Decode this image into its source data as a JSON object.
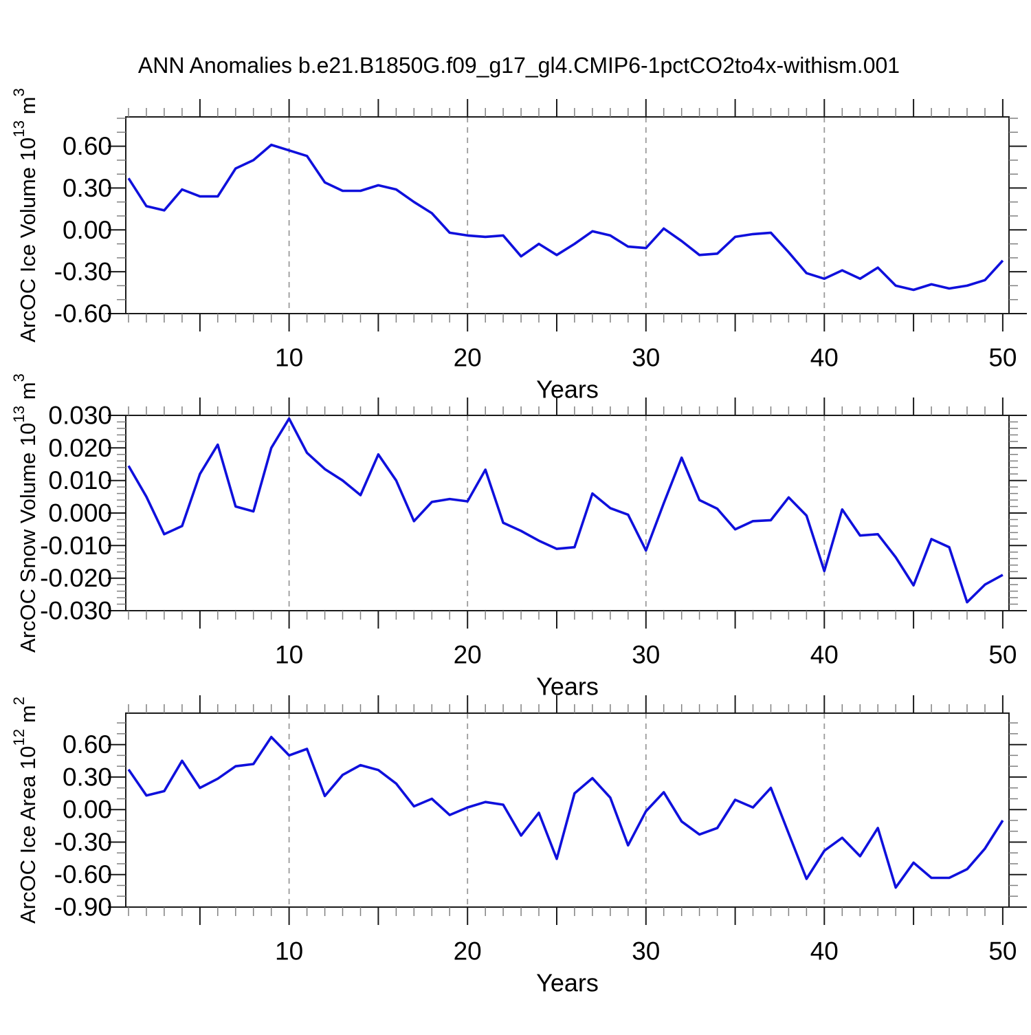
{
  "title": "ANN Anomalies b.e21.B1850G.f09_g17_gl4.CMIP6-1pctCO2to4x-withism.001",
  "colors": {
    "line": "#0f10dc",
    "grid": "#9a9a9a",
    "axis": "#1a1a1a",
    "minor_tick": "#808080",
    "background": "#ffffff",
    "text": "#000000"
  },
  "chart_data": [
    {
      "id": "ice-volume",
      "type": "line",
      "title": "",
      "xlabel": "Years",
      "ylabel": "ArcOC Ice Volume 10^13 m^3",
      "x": {
        "start": 1,
        "end": 50,
        "step": 1
      },
      "values": [
        0.37,
        0.17,
        0.14,
        0.29,
        0.24,
        0.24,
        0.44,
        0.5,
        0.61,
        0.57,
        0.53,
        0.34,
        0.28,
        0.28,
        0.32,
        0.29,
        0.2,
        0.12,
        -0.02,
        -0.04,
        -0.05,
        -0.04,
        -0.19,
        -0.1,
        -0.18,
        -0.1,
        -0.01,
        -0.04,
        -0.12,
        -0.13,
        0.01,
        -0.08,
        -0.18,
        -0.17,
        -0.05,
        -0.03,
        -0.02,
        -0.16,
        -0.31,
        -0.35,
        -0.29,
        -0.35,
        -0.27,
        -0.4,
        -0.43,
        -0.39,
        -0.42,
        -0.4,
        -0.36,
        -0.22
      ],
      "xlim": [
        0.845,
        50.35
      ],
      "ylim": [
        -0.6,
        0.81
      ],
      "xticks": [
        10,
        20,
        30,
        40,
        50
      ],
      "xtick_labels": [
        "10",
        "20",
        "30",
        "40",
        "50"
      ],
      "yticks": [
        -0.6,
        -0.3,
        0.0,
        0.3,
        0.6
      ],
      "ytick_labels": [
        "-0.60",
        "-0.30",
        "0.00",
        "0.30",
        "0.60"
      ],
      "grid_x": [
        10,
        20,
        30,
        40
      ],
      "grid": "vertical-dashed",
      "legend": "none"
    },
    {
      "id": "snow-volume",
      "type": "line",
      "title": "",
      "xlabel": "Years",
      "ylabel": "ArcOC Snow Volume 10^13 m^3",
      "x": {
        "start": 1,
        "end": 50,
        "step": 1
      },
      "values": [
        0.0145,
        0.005,
        -0.0065,
        -0.004,
        0.012,
        0.021,
        0.002,
        0.0005,
        0.02,
        0.029,
        0.0185,
        0.0135,
        0.01,
        0.0055,
        0.018,
        0.01,
        -0.0025,
        0.0034,
        0.0043,
        0.0036,
        0.0133,
        -0.003,
        -0.0055,
        -0.0085,
        -0.011,
        -0.0105,
        0.006,
        0.0015,
        -0.0005,
        -0.0115,
        0.003,
        0.017,
        0.004,
        0.0013,
        -0.005,
        -0.0025,
        -0.0022,
        0.0048,
        -0.0008,
        -0.0178,
        0.0011,
        -0.0069,
        -0.0065,
        -0.0136,
        -0.0222,
        -0.008,
        -0.0105,
        -0.0274,
        -0.022,
        -0.019
      ],
      "xlim": [
        0.845,
        50.35
      ],
      "ylim": [
        -0.03,
        0.03
      ],
      "xticks": [
        10,
        20,
        30,
        40,
        50
      ],
      "xtick_labels": [
        "10",
        "20",
        "30",
        "40",
        "50"
      ],
      "yticks": [
        -0.03,
        -0.02,
        -0.01,
        0.0,
        0.01,
        0.02,
        0.03
      ],
      "ytick_labels": [
        "-0.030",
        "-0.020",
        "-0.010",
        "0.000",
        "0.010",
        "0.020",
        "0.030"
      ],
      "grid_x": [
        10,
        20,
        30,
        40
      ],
      "grid": "vertical-dashed",
      "legend": "none"
    },
    {
      "id": "ice-area",
      "type": "line",
      "title": "",
      "xlabel": "Years",
      "ylabel": "ArcOC Ice Area 10^12 m^2",
      "x": {
        "start": 1,
        "end": 50,
        "step": 1
      },
      "values": [
        0.37,
        0.13,
        0.17,
        0.45,
        0.2,
        0.285,
        0.4,
        0.42,
        0.67,
        0.5,
        0.56,
        0.125,
        0.32,
        0.41,
        0.365,
        0.24,
        0.03,
        0.1,
        -0.05,
        0.02,
        0.07,
        0.045,
        -0.24,
        -0.03,
        -0.455,
        0.15,
        0.29,
        0.11,
        -0.33,
        -0.015,
        0.16,
        -0.11,
        -0.23,
        -0.17,
        0.09,
        0.02,
        0.2,
        -0.22,
        -0.64,
        -0.38,
        -0.26,
        -0.43,
        -0.17,
        -0.72,
        -0.49,
        -0.63,
        -0.63,
        -0.55,
        -0.36,
        -0.1
      ],
      "xlim": [
        0.845,
        50.35
      ],
      "ylim": [
        -0.9,
        0.89
      ],
      "xticks": [
        10,
        20,
        30,
        40,
        50
      ],
      "xtick_labels": [
        "10",
        "20",
        "30",
        "40",
        "50"
      ],
      "yticks": [
        -0.9,
        -0.6,
        -0.3,
        0.0,
        0.3,
        0.6
      ],
      "ytick_labels": [
        "-0.90",
        "-0.60",
        "-0.30",
        "0.00",
        "0.30",
        "0.60"
      ],
      "grid_x": [
        10,
        20,
        30,
        40
      ],
      "grid": "vertical-dashed",
      "legend": "none"
    }
  ]
}
